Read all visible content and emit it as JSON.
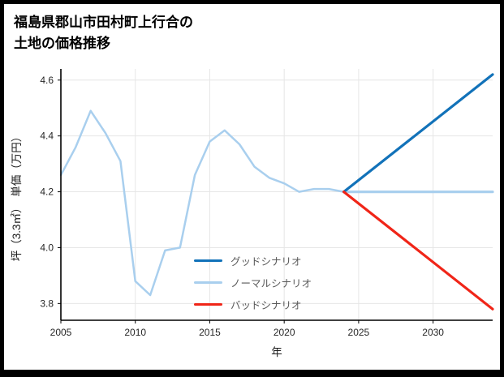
{
  "header": {
    "title_line1": "福島県郡山市田村町上行合の",
    "title_line2": "土地の価格推移"
  },
  "chart_data": {
    "type": "line",
    "title": "福島県郡山市田村町上行合の土地の価格推移",
    "xlabel": "年",
    "ylabel": "坪（3.3㎡）　単価（万円）",
    "x_range": [
      2005,
      2034
    ],
    "y_range": [
      3.74,
      4.64
    ],
    "x_ticks": [
      2005,
      2010,
      2015,
      2020,
      2025,
      2030
    ],
    "y_ticks": [
      3.8,
      4.0,
      4.2,
      4.4,
      4.6
    ],
    "grid": true,
    "legend_position": "inside-bottom-center",
    "colors": {
      "grid": "#e6e6e6",
      "axis": "#000000",
      "tick_label": "#262626",
      "legend_text": "#595959"
    },
    "series": [
      {
        "id": "historical",
        "color": "#a9cfee",
        "width": 2.5,
        "x": [
          2005,
          2006,
          2007,
          2008,
          2009,
          2010,
          2011,
          2012,
          2013,
          2014,
          2015,
          2016,
          2017,
          2018,
          2019,
          2020,
          2021,
          2022,
          2023,
          2024
        ],
        "values": [
          4.26,
          4.36,
          4.49,
          4.41,
          4.31,
          3.88,
          3.83,
          3.99,
          4.0,
          4.26,
          4.38,
          4.42,
          4.37,
          4.29,
          4.25,
          4.23,
          4.2,
          4.21,
          4.21,
          4.2
        ]
      },
      {
        "id": "normal-scenario",
        "color": "#a9cfee",
        "width": 3.2,
        "x": [
          2024,
          2034
        ],
        "values": [
          4.2,
          4.2
        ]
      },
      {
        "id": "good-scenario",
        "color": "#1272b9",
        "width": 3.2,
        "x": [
          2024,
          2034
        ],
        "values": [
          4.2,
          4.62
        ]
      },
      {
        "id": "bad-scenario",
        "color": "#f02518",
        "width": 3.2,
        "x": [
          2024,
          2034
        ],
        "values": [
          4.2,
          3.78
        ]
      }
    ],
    "legend": [
      {
        "id": "good-scenario",
        "label": "グッドシナリオ",
        "color": "#1272b9"
      },
      {
        "id": "normal-scenario",
        "label": "ノーマルシナリオ",
        "color": "#a9cfee"
      },
      {
        "id": "bad-scenario",
        "label": "バッドシナリオ",
        "color": "#f02518"
      }
    ]
  }
}
